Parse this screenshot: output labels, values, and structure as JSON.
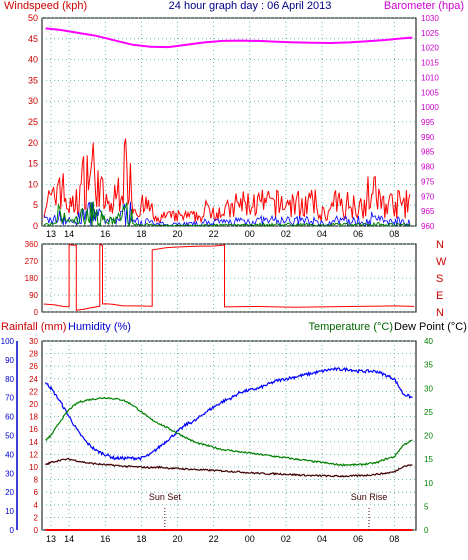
{
  "chart_data": [
    {
      "type": "line",
      "title": "24 hour graph day : 06 April 2013",
      "ylabel_left": "Windspeed (kph)",
      "ylabel_right": "Barometer (hpa)",
      "x_ticks": [
        "13",
        "14",
        "16",
        "18",
        "20",
        "22",
        "00",
        "02",
        "04",
        "06",
        "08"
      ],
      "ylim_left": [
        0,
        50
      ],
      "yticks_left": [
        "0",
        "5",
        "10",
        "15",
        "20",
        "25",
        "30",
        "35",
        "40",
        "45",
        "50"
      ],
      "ylim_right": [
        960,
        1030
      ],
      "yticks_right": [
        "960",
        "965",
        "970",
        "975",
        "980",
        "985",
        "990",
        "995",
        "1000",
        "1005",
        "1010",
        "1015",
        "1020",
        "1025",
        "1030"
      ],
      "grid": true,
      "colors": {
        "barometer": "#ff00ff",
        "gust": "#ff0000",
        "wind": "#0000ff",
        "avg": "#008000"
      },
      "series": [
        {
          "name": "",
          "axis": "right",
          "color": "#ff00ff",
          "x": [
            12.7,
            13.5,
            14.5,
            15.5,
            16.5,
            17.5,
            18.5,
            19.5,
            20.5,
            21.5,
            22.5,
            23.5,
            0.5,
            1.5,
            2.5,
            3.5,
            4.5,
            5.5,
            6.5,
            7.5,
            8.5,
            9.0
          ],
          "values": [
            1026.5,
            1026.0,
            1025.0,
            1024.0,
            1022.5,
            1021.0,
            1020.3,
            1020.2,
            1021.0,
            1021.8,
            1022.3,
            1022.4,
            1022.3,
            1022.0,
            1021.8,
            1021.7,
            1021.6,
            1021.8,
            1022.2,
            1022.6,
            1023.2,
            1023.4
          ]
        }
      ]
    },
    {
      "type": "line",
      "ylabel_right_ticks": [
        "N",
        "W",
        "S",
        "E",
        "N"
      ],
      "ylim": [
        0,
        360
      ],
      "yticks": [
        "360",
        "270",
        "180",
        "90",
        "0"
      ],
      "grid": true,
      "color": "#ff0000"
    },
    {
      "type": "line",
      "ylabel_left": "Rainfall (mm)",
      "ylabel_left2": "Humidity (%)",
      "ylabel_right": "Temperature (°C)",
      "ylabel_right2": "Dew Point (°C)",
      "x_ticks": [
        "13",
        "14",
        "16",
        "18",
        "20",
        "22",
        "00",
        "02",
        "04",
        "06",
        "08"
      ],
      "yticks_humidity": [
        "0",
        "10",
        "20",
        "30",
        "40",
        "50",
        "60",
        "70",
        "80",
        "90",
        "100"
      ],
      "yticks_rain": [
        "0",
        "2",
        "4",
        "6",
        "8",
        "10",
        "12",
        "14",
        "16",
        "18",
        "20",
        "22",
        "24",
        "26",
        "28",
        "30"
      ],
      "yticks_temp": [
        "0",
        "5",
        "10",
        "15",
        "20",
        "25",
        "30",
        "35",
        "40"
      ],
      "annotations": [
        "Sun Set",
        "Sun Rise"
      ],
      "grid": true,
      "series": [
        {
          "name": "",
          "color": "#0000ff",
          "axis": "humidity",
          "x": [
            12.7,
            13.0,
            13.5,
            14.0,
            14.5,
            15.0,
            15.5,
            16.0,
            16.5,
            17.0,
            17.5,
            18.0,
            18.5,
            19.0,
            19.5,
            20.0,
            20.5,
            21.0,
            21.5,
            22.0,
            22.5,
            23.0,
            23.5,
            0.0,
            0.5,
            1.0,
            1.5,
            2.0,
            2.5,
            3.0,
            3.5,
            4.0,
            4.5,
            5.0,
            5.5,
            6.0,
            6.5,
            7.0,
            7.5,
            8.0,
            8.5,
            9.0
          ],
          "values": [
            78,
            75,
            68,
            60,
            52,
            46,
            42,
            40,
            38,
            38,
            38,
            38,
            40,
            44,
            48,
            52,
            56,
            58,
            62,
            65,
            68,
            70,
            73,
            74,
            75,
            77,
            79,
            80,
            81,
            82,
            83,
            84,
            85,
            85,
            85,
            84,
            84,
            84,
            82,
            80,
            72,
            70
          ]
        },
        {
          "name": "",
          "color": "#008000",
          "axis": "temp",
          "x": [
            12.7,
            13.0,
            13.5,
            14.0,
            14.5,
            15.0,
            15.5,
            16.0,
            16.5,
            17.0,
            17.5,
            18.0,
            18.5,
            19.0,
            19.5,
            20.0,
            20.5,
            21.0,
            21.5,
            22.0,
            22.5,
            23.0,
            23.5,
            0.0,
            0.5,
            1.0,
            1.5,
            2.0,
            2.5,
            3.0,
            3.5,
            4.0,
            4.5,
            5.0,
            5.5,
            6.0,
            6.5,
            7.0,
            7.5,
            8.0,
            8.5,
            9.0
          ],
          "values": [
            19,
            20,
            23,
            25.5,
            27,
            27.5,
            27.8,
            28,
            27.8,
            27.5,
            26.5,
            25,
            23.5,
            22.5,
            21.5,
            20.5,
            19.5,
            18.5,
            18,
            17.5,
            17,
            16.8,
            16.5,
            16.3,
            16,
            15.8,
            15.5,
            15.3,
            15,
            14.8,
            14.5,
            14.3,
            14,
            13.8,
            13.8,
            13.8,
            14,
            14.2,
            15,
            15.5,
            18,
            19
          ]
        },
        {
          "name": "",
          "color": "#400000",
          "axis": "temp",
          "x": [
            12.7,
            13.0,
            13.5,
            14.0,
            14.5,
            15.0,
            15.5,
            16.0,
            16.5,
            17.0,
            17.5,
            18.0,
            18.5,
            19.0,
            19.5,
            20.0,
            20.5,
            21.0,
            21.5,
            22.0,
            22.5,
            23.0,
            23.5,
            0.0,
            0.5,
            1.0,
            1.5,
            2.0,
            2.5,
            3.0,
            3.5,
            4.0,
            4.5,
            5.0,
            5.5,
            6.0,
            6.5,
            7.0,
            7.5,
            8.0,
            8.5,
            9.0
          ],
          "values": [
            13.8,
            14.3,
            14.8,
            15,
            14.6,
            14.2,
            14,
            13.8,
            13.7,
            13.5,
            13.4,
            13.3,
            13.2,
            13.3,
            13.1,
            13,
            12.9,
            12.8,
            12.7,
            12.6,
            12.5,
            12.4,
            12.3,
            12.1,
            12,
            11.9,
            11.9,
            11.8,
            11.7,
            11.6,
            11.5,
            11.5,
            11.4,
            11.4,
            11.4,
            11.5,
            11.6,
            11.8,
            12.0,
            12.3,
            13.5,
            13.8
          ]
        },
        {
          "name": "",
          "color": "#ff0000",
          "axis": "rain",
          "x": [
            12.7,
            9.0
          ],
          "values": [
            0,
            0
          ]
        }
      ]
    }
  ]
}
